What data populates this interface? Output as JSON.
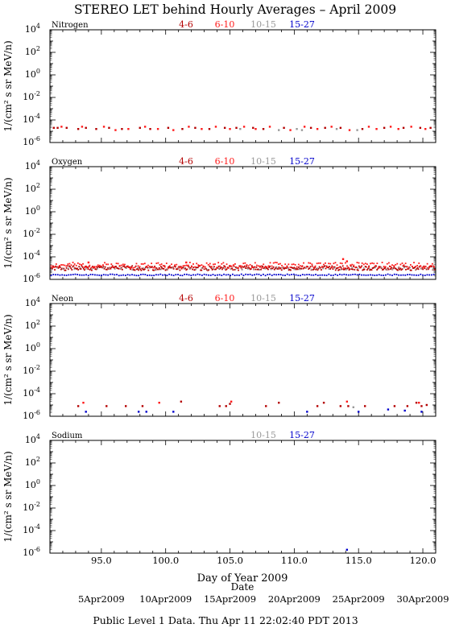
{
  "title": "STEREO LET behind Hourly Averages – April 2009",
  "xlabel": "Day of Year 2009",
  "date_axis_label": "Date",
  "footer": "Public Level 1 Data.  Thu Apr 11 22:02:40 PDT 2013",
  "date_ticks": [
    {
      "label": "5Apr2009",
      "doy": 95
    },
    {
      "label": "10Apr2009",
      "doy": 100
    },
    {
      "label": "15Apr2009",
      "doy": 105
    },
    {
      "label": "20Apr2009",
      "doy": 110
    },
    {
      "label": "25Apr2009",
      "doy": 115
    },
    {
      "label": "30Apr2009",
      "doy": 120
    }
  ],
  "colors": {
    "4-6": "#b40000",
    "6-10": "#ff1a1a",
    "10-15": "#999999",
    "15-27": "#0000cc"
  },
  "chart_data": [
    {
      "type": "scatter",
      "name": "Nitrogen",
      "ylabel": "1/(cm² s sr MeV/n)",
      "xlim": [
        91,
        121
      ],
      "ylim_log10": [
        -6,
        4
      ],
      "yticks": [
        4,
        2,
        0,
        -2,
        -4,
        -6
      ],
      "xticks": [
        95,
        100,
        105,
        110,
        115,
        120
      ],
      "xtick_labels": [
        "95.0",
        "100.0",
        "105.0",
        "110.0",
        "115.0",
        "120.0"
      ],
      "legend": [
        {
          "label": "4-6",
          "key": "4-6"
        },
        {
          "label": "6-10",
          "key": "6-10"
        },
        {
          "label": "10-15",
          "key": "10-15"
        },
        {
          "label": "15-27",
          "key": "15-27"
        }
      ],
      "series": [
        {
          "key": "4-6",
          "points": [
            [
              91.3,
              -4.7
            ],
            [
              91.6,
              -4.7
            ],
            [
              92.3,
              -4.7
            ],
            [
              93.2,
              -4.8
            ],
            [
              93.8,
              -4.7
            ],
            [
              94.6,
              -4.8
            ],
            [
              95.6,
              -4.7
            ],
            [
              96.6,
              -4.8
            ],
            [
              98.0,
              -4.7
            ],
            [
              98.8,
              -4.8
            ],
            [
              100.2,
              -4.7
            ],
            [
              101.3,
              -4.8
            ],
            [
              102.3,
              -4.7
            ],
            [
              103.4,
              -4.8
            ],
            [
              104.6,
              -4.7
            ],
            [
              105.5,
              -4.7
            ],
            [
              106.8,
              -4.7
            ],
            [
              107.6,
              -4.8
            ],
            [
              109.2,
              -4.7
            ],
            [
              111.3,
              -4.7
            ],
            [
              112.4,
              -4.7
            ],
            [
              113.6,
              -4.7
            ],
            [
              115.3,
              -4.8
            ],
            [
              117.0,
              -4.7
            ],
            [
              118.5,
              -4.7
            ],
            [
              119.8,
              -4.7
            ],
            [
              120.6,
              -4.7
            ]
          ]
        },
        {
          "key": "6-10",
          "points": [
            [
              91.9,
              -4.6
            ],
            [
              93.5,
              -4.6
            ],
            [
              95.2,
              -4.6
            ],
            [
              96.1,
              -4.9
            ],
            [
              97.1,
              -4.8
            ],
            [
              98.4,
              -4.6
            ],
            [
              99.4,
              -4.8
            ],
            [
              100.6,
              -4.9
            ],
            [
              101.8,
              -4.6
            ],
            [
              102.8,
              -4.8
            ],
            [
              103.9,
              -4.6
            ],
            [
              105.0,
              -4.8
            ],
            [
              106.1,
              -4.6
            ],
            [
              107.0,
              -4.8
            ],
            [
              108.1,
              -4.6
            ],
            [
              109.7,
              -4.9
            ],
            [
              110.8,
              -4.6
            ],
            [
              111.8,
              -4.8
            ],
            [
              112.9,
              -4.6
            ],
            [
              114.3,
              -4.9
            ],
            [
              115.8,
              -4.6
            ],
            [
              116.4,
              -4.8
            ],
            [
              117.5,
              -4.6
            ],
            [
              118.1,
              -4.8
            ],
            [
              119.1,
              -4.6
            ],
            [
              120.2,
              -4.8
            ]
          ]
        },
        {
          "key": "10-15",
          "points": [
            [
              105.8,
              -4.8
            ],
            [
              108.8,
              -4.9
            ],
            [
              110.2,
              -4.8
            ],
            [
              110.6,
              -4.9
            ],
            [
              113.3,
              -4.8
            ],
            [
              114.9,
              -4.9
            ]
          ]
        },
        {
          "key": "15-27",
          "points": []
        }
      ]
    },
    {
      "type": "scatter",
      "name": "Oxygen",
      "ylabel": "1/(cm² s sr MeV/n)",
      "xlim": [
        91,
        121
      ],
      "ylim_log10": [
        -6,
        4
      ],
      "yticks": [
        4,
        2,
        0,
        -2,
        -4,
        -6
      ],
      "xticks": [
        95,
        100,
        105,
        110,
        115,
        120
      ],
      "xtick_labels": [
        "95.0",
        "100.0",
        "105.0",
        "110.0",
        "115.0",
        "120.0"
      ],
      "legend": [
        {
          "label": "4-6",
          "key": "4-6"
        },
        {
          "label": "6-10",
          "key": "6-10"
        },
        {
          "label": "10-15",
          "key": "10-15"
        },
        {
          "label": "15-27",
          "key": "15-27"
        }
      ],
      "dense": [
        {
          "key": "4-6",
          "center": -5.0,
          "spread": 0.2,
          "step": 0.07,
          "seed": 1
        },
        {
          "key": "6-10",
          "center": -4.75,
          "spread": 0.25,
          "step": 0.13,
          "seed": 2
        },
        {
          "key": "10-15",
          "center": -5.05,
          "spread": 0.1,
          "step": 0.45,
          "seed": 3
        },
        {
          "key": "15-27",
          "center": -5.6,
          "spread": 0.06,
          "step": 0.17,
          "seed": 4
        }
      ],
      "series": [
        {
          "key": "6-10",
          "points": [
            [
              113.8,
              -4.2
            ],
            [
              114.1,
              -4.4
            ],
            [
              101.6,
              -4.5
            ],
            [
              94.0,
              -4.5
            ]
          ]
        }
      ]
    },
    {
      "type": "scatter",
      "name": "Neon",
      "ylabel": "1/(cm² s sr MeV/n)",
      "xlim": [
        91,
        121
      ],
      "ylim_log10": [
        -6,
        4
      ],
      "yticks": [
        4,
        2,
        0,
        -2,
        -4,
        -6
      ],
      "xticks": [
        95,
        100,
        105,
        110,
        115,
        120
      ],
      "xtick_labels": [
        "95.0",
        "100.0",
        "105.0",
        "110.0",
        "115.0",
        "120.0"
      ],
      "legend": [
        {
          "label": "4-6",
          "key": "4-6"
        },
        {
          "label": "6-10",
          "key": "6-10"
        },
        {
          "label": "10-15",
          "key": "10-15"
        },
        {
          "label": "15-27",
          "key": "15-27"
        }
      ],
      "series": [
        {
          "key": "4-6",
          "points": [
            [
              93.2,
              -5.1
            ],
            [
              95.4,
              -5.1
            ],
            [
              96.9,
              -5.1
            ],
            [
              98.2,
              -5.1
            ],
            [
              101.2,
              -4.7
            ],
            [
              104.2,
              -5.1
            ],
            [
              104.7,
              -5.1
            ],
            [
              105.0,
              -4.9
            ],
            [
              107.8,
              -5.1
            ],
            [
              108.8,
              -4.8
            ],
            [
              111.8,
              -5.1
            ],
            [
              112.3,
              -4.8
            ],
            [
              113.6,
              -5.1
            ],
            [
              114.2,
              -5.1
            ],
            [
              115.5,
              -5.1
            ],
            [
              117.8,
              -5.1
            ],
            [
              118.8,
              -5.1
            ],
            [
              119.5,
              -4.8
            ],
            [
              119.9,
              -5.1
            ],
            [
              120.3,
              -5.0
            ]
          ]
        },
        {
          "key": "6-10",
          "points": [
            [
              93.6,
              -4.8
            ],
            [
              99.5,
              -4.8
            ],
            [
              105.1,
              -4.7
            ],
            [
              114.1,
              -4.7
            ],
            [
              119.7,
              -4.8
            ]
          ]
        },
        {
          "key": "10-15",
          "points": [
            [
              114.6,
              -5.2
            ]
          ]
        },
        {
          "key": "15-27",
          "points": [
            [
              93.8,
              -5.6
            ],
            [
              97.9,
              -5.6
            ],
            [
              98.5,
              -5.6
            ],
            [
              100.6,
              -5.6
            ],
            [
              111.0,
              -5.6
            ],
            [
              115.0,
              -5.6
            ],
            [
              117.3,
              -5.4
            ],
            [
              118.6,
              -5.5
            ],
            [
              119.9,
              -5.6
            ]
          ]
        }
      ]
    },
    {
      "type": "scatter",
      "name": "Sodium",
      "ylabel": "1/(cm² s sr MeV/n)",
      "xlim": [
        91,
        121
      ],
      "ylim_log10": [
        -6,
        4
      ],
      "yticks": [
        4,
        2,
        0,
        -2,
        -4,
        -6
      ],
      "xticks": [
        95,
        100,
        105,
        110,
        115,
        120
      ],
      "xtick_labels": [
        "95.0",
        "100.0",
        "105.0",
        "110.0",
        "115.0",
        "120.0"
      ],
      "legend": [
        {
          "label": "10-15",
          "key": "10-15"
        },
        {
          "label": "15-27",
          "key": "15-27"
        }
      ],
      "series": [
        {
          "key": "15-27",
          "points": [
            [
              114.1,
              -5.7
            ]
          ]
        }
      ]
    }
  ]
}
